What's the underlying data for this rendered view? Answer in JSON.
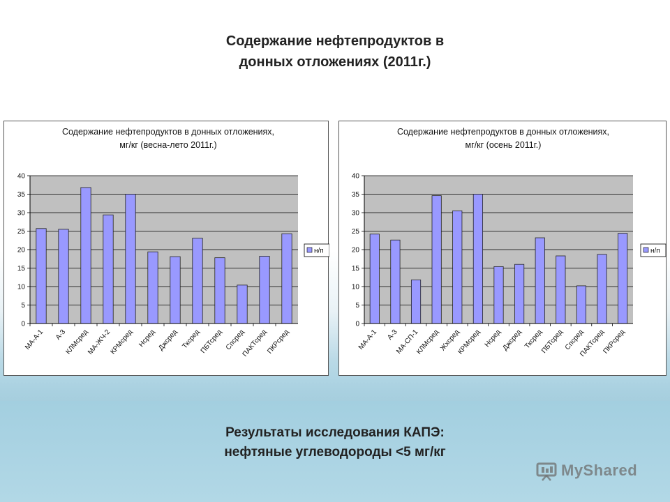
{
  "slide": {
    "title_line1": "Содержание нефтепродуктов в",
    "title_line2": "донных отложениях (2011г.)",
    "results_line1": "Результаты исследования КАПЭ:",
    "results_line2": "нефтяные углеводороды <5 мг/кг",
    "watermark": "MyShared"
  },
  "chart_data": [
    {
      "type": "bar",
      "title": [
        "Содержание нефтепродуктов в донных отложениях,",
        "мг/кг (весна-лето 2011г.)"
      ],
      "categories": [
        "МА-А-1",
        "А-3",
        "КЛМсред",
        "МА-ЖЧ-2",
        "КРМсред",
        "Нсред",
        "Джсред",
        "Тксред",
        "ПБТсред",
        "Спсред",
        "ПАКТсред",
        "ПКРсред"
      ],
      "series": [
        {
          "name": "н/п",
          "values": [
            25.7,
            25.5,
            36.8,
            29.4,
            35.0,
            19.4,
            18.1,
            23.1,
            17.8,
            10.4,
            18.2,
            24.3
          ]
        }
      ],
      "ylim": [
        0,
        40
      ],
      "yticks": [
        0,
        5,
        10,
        15,
        20,
        25,
        30,
        35,
        40
      ],
      "grid": true,
      "legend": "right",
      "colors": {
        "bar": "#9999ff",
        "plot_bg": "#c0c0c0",
        "bar_edge": "#222222"
      }
    },
    {
      "type": "bar",
      "title": [
        "Содержание нефтепродуктов в донных отложениях,",
        "мг/кг (осень 2011г.)"
      ],
      "categories": [
        "МА-А-1",
        "А-3",
        "МА-СП-1",
        "КЛМсред",
        "Жхсред",
        "КРМсред",
        "Нсред",
        "Джсред",
        "Тксред",
        "ПБТсред",
        "Спсред",
        "ПАКТсред",
        "ПКРсред"
      ],
      "series": [
        {
          "name": "н/п",
          "values": [
            24.2,
            22.6,
            11.8,
            34.6,
            30.5,
            35.0,
            15.4,
            16.0,
            23.2,
            18.3,
            10.2,
            18.7,
            24.4
          ]
        }
      ],
      "ylim": [
        0,
        40
      ],
      "yticks": [
        0,
        5,
        10,
        15,
        20,
        25,
        30,
        35,
        40
      ],
      "grid": true,
      "legend": "right",
      "colors": {
        "bar": "#9999ff",
        "plot_bg": "#c0c0c0",
        "bar_edge": "#222222"
      }
    }
  ]
}
